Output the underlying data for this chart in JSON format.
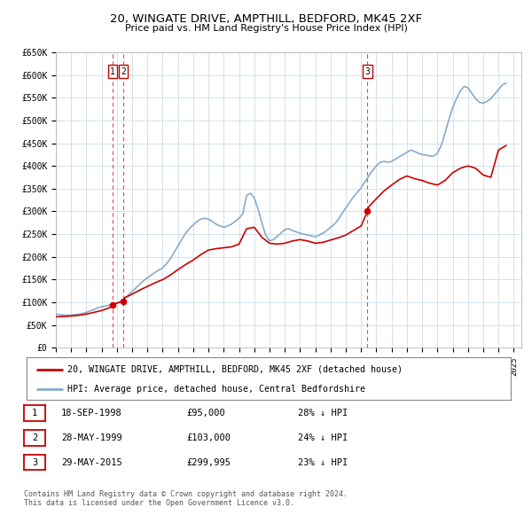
{
  "title": "20, WINGATE DRIVE, AMPTHILL, BEDFORD, MK45 2XF",
  "subtitle": "Price paid vs. HM Land Registry's House Price Index (HPI)",
  "ylim": [
    0,
    650000
  ],
  "yticks": [
    0,
    50000,
    100000,
    150000,
    200000,
    250000,
    300000,
    350000,
    400000,
    450000,
    500000,
    550000,
    600000,
    650000
  ],
  "ytick_labels": [
    "£0",
    "£50K",
    "£100K",
    "£150K",
    "£200K",
    "£250K",
    "£300K",
    "£350K",
    "£400K",
    "£450K",
    "£500K",
    "£550K",
    "£600K",
    "£650K"
  ],
  "xlim_start": 1995.0,
  "xlim_end": 2025.5,
  "xticks": [
    1995,
    1996,
    1997,
    1998,
    1999,
    2000,
    2001,
    2002,
    2003,
    2004,
    2005,
    2006,
    2007,
    2008,
    2009,
    2010,
    2011,
    2012,
    2013,
    2014,
    2015,
    2016,
    2017,
    2018,
    2019,
    2020,
    2021,
    2022,
    2023,
    2024,
    2025
  ],
  "sale_color": "#cc0000",
  "hpi_color": "#88aacc",
  "sale_dot_color": "#cc0000",
  "vline_color": "#cc3333",
  "grid_color": "#ccdde8",
  "background_color": "#ffffff",
  "legend_label_sale": "20, WINGATE DRIVE, AMPTHILL, BEDFORD, MK45 2XF (detached house)",
  "legend_label_hpi": "HPI: Average price, detached house, Central Bedfordshire",
  "transactions": [
    {
      "num": 1,
      "date": 1998.72,
      "price": 95000,
      "label": "1",
      "date_str": "18-SEP-1998",
      "price_str": "£95,000",
      "hpi_pct": "28% ↓ HPI"
    },
    {
      "num": 2,
      "date": 1999.41,
      "price": 103000,
      "label": "2",
      "date_str": "28-MAY-1999",
      "price_str": "£103,000",
      "hpi_pct": "24% ↓ HPI"
    },
    {
      "num": 3,
      "date": 2015.41,
      "price": 299995,
      "label": "3",
      "date_str": "29-MAY-2015",
      "price_str": "£299,995",
      "hpi_pct": "23% ↓ HPI"
    }
  ],
  "footer_line1": "Contains HM Land Registry data © Crown copyright and database right 2024.",
  "footer_line2": "This data is licensed under the Open Government Licence v3.0.",
  "hpi_data_x": [
    1995.0,
    1995.25,
    1995.5,
    1995.75,
    1996.0,
    1996.25,
    1996.5,
    1996.75,
    1997.0,
    1997.25,
    1997.5,
    1997.75,
    1998.0,
    1998.25,
    1998.5,
    1998.75,
    1999.0,
    1999.25,
    1999.5,
    1999.75,
    2000.0,
    2000.25,
    2000.5,
    2000.75,
    2001.0,
    2001.25,
    2001.5,
    2001.75,
    2002.0,
    2002.25,
    2002.5,
    2002.75,
    2003.0,
    2003.25,
    2003.5,
    2003.75,
    2004.0,
    2004.25,
    2004.5,
    2004.75,
    2005.0,
    2005.25,
    2005.5,
    2005.75,
    2006.0,
    2006.25,
    2006.5,
    2006.75,
    2007.0,
    2007.25,
    2007.5,
    2007.75,
    2008.0,
    2008.25,
    2008.5,
    2008.75,
    2009.0,
    2009.25,
    2009.5,
    2009.75,
    2010.0,
    2010.25,
    2010.5,
    2010.75,
    2011.0,
    2011.25,
    2011.5,
    2011.75,
    2012.0,
    2012.25,
    2012.5,
    2012.75,
    2013.0,
    2013.25,
    2013.5,
    2013.75,
    2014.0,
    2014.25,
    2014.5,
    2014.75,
    2015.0,
    2015.25,
    2015.5,
    2015.75,
    2016.0,
    2016.25,
    2016.5,
    2016.75,
    2017.0,
    2017.25,
    2017.5,
    2017.75,
    2018.0,
    2018.25,
    2018.5,
    2018.75,
    2019.0,
    2019.25,
    2019.5,
    2019.75,
    2020.0,
    2020.25,
    2020.5,
    2020.75,
    2021.0,
    2021.25,
    2021.5,
    2021.75,
    2022.0,
    2022.25,
    2022.5,
    2022.75,
    2023.0,
    2023.25,
    2023.5,
    2023.75,
    2024.0,
    2024.25,
    2024.5
  ],
  "hpi_data_y": [
    74000,
    73000,
    72000,
    71500,
    72000,
    73000,
    74000,
    75500,
    78000,
    81000,
    84000,
    88000,
    90000,
    92000,
    94000,
    96000,
    98000,
    102000,
    108000,
    116000,
    124000,
    132000,
    140000,
    148000,
    154000,
    160000,
    166000,
    171000,
    176000,
    185000,
    196000,
    210000,
    224000,
    238000,
    252000,
    262000,
    270000,
    278000,
    283000,
    285000,
    283000,
    278000,
    272000,
    268000,
    265000,
    268000,
    272000,
    278000,
    285000,
    295000,
    335000,
    340000,
    330000,
    305000,
    275000,
    248000,
    235000,
    238000,
    245000,
    252000,
    260000,
    262000,
    258000,
    255000,
    252000,
    250000,
    248000,
    246000,
    244000,
    248000,
    252000,
    258000,
    265000,
    272000,
    282000,
    295000,
    308000,
    320000,
    332000,
    342000,
    352000,
    365000,
    378000,
    390000,
    400000,
    408000,
    410000,
    408000,
    410000,
    415000,
    420000,
    425000,
    430000,
    435000,
    432000,
    428000,
    425000,
    424000,
    422000,
    422000,
    428000,
    445000,
    472000,
    502000,
    528000,
    548000,
    565000,
    575000,
    572000,
    560000,
    548000,
    540000,
    538000,
    542000,
    548000,
    558000,
    568000,
    578000,
    582000
  ],
  "sale_data_x": [
    1995.0,
    1995.5,
    1996.0,
    1996.5,
    1997.0,
    1997.5,
    1998.0,
    1998.5,
    1998.72,
    1999.0,
    1999.41,
    1999.5,
    2000.0,
    2000.5,
    2001.0,
    2001.5,
    2002.0,
    2002.5,
    2003.0,
    2003.5,
    2004.0,
    2004.5,
    2005.0,
    2005.5,
    2006.0,
    2006.5,
    2007.0,
    2007.5,
    2008.0,
    2008.5,
    2009.0,
    2009.5,
    2010.0,
    2010.5,
    2011.0,
    2011.5,
    2012.0,
    2012.5,
    2013.0,
    2013.5,
    2014.0,
    2014.5,
    2015.0,
    2015.41,
    2015.5,
    2016.0,
    2016.5,
    2017.0,
    2017.5,
    2018.0,
    2018.5,
    2019.0,
    2019.5,
    2020.0,
    2020.5,
    2021.0,
    2021.5,
    2022.0,
    2022.5,
    2023.0,
    2023.5,
    2024.0,
    2024.5
  ],
  "sale_data_y": [
    68000,
    69000,
    70000,
    71500,
    74000,
    78000,
    82000,
    88000,
    95000,
    98000,
    103000,
    110000,
    118000,
    127000,
    135000,
    143000,
    150000,
    160000,
    172000,
    183000,
    193000,
    205000,
    215000,
    218000,
    220000,
    222000,
    228000,
    262000,
    265000,
    243000,
    230000,
    228000,
    230000,
    235000,
    238000,
    235000,
    230000,
    232000,
    237000,
    242000,
    248000,
    258000,
    268000,
    299995,
    310000,
    328000,
    345000,
    358000,
    370000,
    378000,
    372000,
    368000,
    362000,
    358000,
    368000,
    385000,
    395000,
    400000,
    395000,
    380000,
    375000,
    435000,
    445000
  ]
}
